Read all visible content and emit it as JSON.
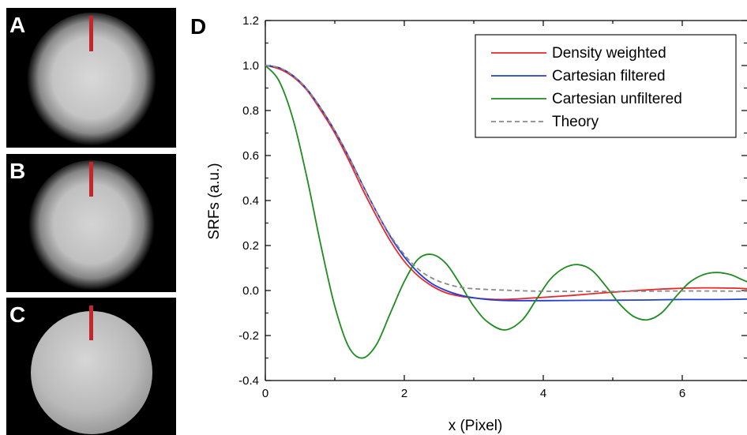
{
  "panels": [
    {
      "letter": "A",
      "style": "smooth"
    },
    {
      "letter": "B",
      "style": "smooth"
    },
    {
      "letter": "C",
      "style": "pixelated"
    }
  ],
  "chart_letter": "D",
  "chart_data": {
    "type": "line",
    "title": "",
    "xlabel": "x (Pixel)",
    "ylabel": "SRFs (a.u.)",
    "xlim": [
      0,
      7
    ],
    "ylim": [
      -0.4,
      1.2
    ],
    "xticks": [
      0,
      2,
      4,
      6
    ],
    "yticks": [
      -0.4,
      -0.2,
      0.0,
      0.2,
      0.4,
      0.6,
      0.8,
      1.0,
      1.2
    ],
    "ytick_labels": [
      "-0.4",
      "-0.2",
      "0.0",
      "0.2",
      "0.4",
      "0.6",
      "0.8",
      "1.0",
      "1.2"
    ],
    "grid": false,
    "legend_position": "top-right",
    "series": [
      {
        "name": "Density weighted",
        "color": "#e8262b",
        "dash": "none",
        "points": [
          [
            0,
            1.0
          ],
          [
            0.2,
            0.985
          ],
          [
            0.4,
            0.95
          ],
          [
            0.6,
            0.89
          ],
          [
            0.8,
            0.8
          ],
          [
            1.0,
            0.7
          ],
          [
            1.2,
            0.58
          ],
          [
            1.4,
            0.45
          ],
          [
            1.6,
            0.33
          ],
          [
            1.8,
            0.22
          ],
          [
            2.0,
            0.13
          ],
          [
            2.2,
            0.065
          ],
          [
            2.4,
            0.02
          ],
          [
            2.6,
            -0.01
          ],
          [
            2.8,
            -0.025
          ],
          [
            3.0,
            -0.033
          ],
          [
            3.2,
            -0.038
          ],
          [
            3.4,
            -0.04
          ],
          [
            3.6,
            -0.038
          ],
          [
            3.8,
            -0.034
          ],
          [
            4.0,
            -0.03
          ],
          [
            4.4,
            -0.022
          ],
          [
            4.8,
            -0.012
          ],
          [
            5.2,
            -0.003
          ],
          [
            5.6,
            0.005
          ],
          [
            6.0,
            0.01
          ],
          [
            6.4,
            0.012
          ],
          [
            6.8,
            0.01
          ],
          [
            7.0,
            0.006
          ]
        ]
      },
      {
        "name": "Cartesian filtered",
        "color": "#1f3fd6",
        "dash": "none",
        "points": [
          [
            0,
            1.0
          ],
          [
            0.2,
            0.99
          ],
          [
            0.4,
            0.955
          ],
          [
            0.6,
            0.895
          ],
          [
            0.8,
            0.81
          ],
          [
            1.0,
            0.71
          ],
          [
            1.2,
            0.595
          ],
          [
            1.4,
            0.47
          ],
          [
            1.6,
            0.35
          ],
          [
            1.8,
            0.24
          ],
          [
            2.0,
            0.15
          ],
          [
            2.2,
            0.08
          ],
          [
            2.4,
            0.03
          ],
          [
            2.6,
            0.0
          ],
          [
            2.8,
            -0.02
          ],
          [
            3.0,
            -0.032
          ],
          [
            3.2,
            -0.04
          ],
          [
            3.4,
            -0.044
          ],
          [
            3.6,
            -0.045
          ],
          [
            4.0,
            -0.045
          ],
          [
            4.5,
            -0.044
          ],
          [
            5.0,
            -0.043
          ],
          [
            5.5,
            -0.042
          ],
          [
            6.0,
            -0.04
          ],
          [
            6.5,
            -0.04
          ],
          [
            7.0,
            -0.038
          ]
        ]
      },
      {
        "name": "Cartesian unfiltered",
        "color": "#1e8c1e",
        "dash": "none",
        "points": [
          [
            0,
            1.0
          ],
          [
            0.2,
            0.93
          ],
          [
            0.4,
            0.76
          ],
          [
            0.6,
            0.5
          ],
          [
            0.8,
            0.2
          ],
          [
            1.0,
            -0.07
          ],
          [
            1.2,
            -0.25
          ],
          [
            1.4,
            -0.3
          ],
          [
            1.6,
            -0.24
          ],
          [
            1.8,
            -0.1
          ],
          [
            2.0,
            0.04
          ],
          [
            2.2,
            0.14
          ],
          [
            2.4,
            0.16
          ],
          [
            2.6,
            0.12
          ],
          [
            2.8,
            0.03
          ],
          [
            3.0,
            -0.07
          ],
          [
            3.2,
            -0.14
          ],
          [
            3.45,
            -0.175
          ],
          [
            3.7,
            -0.13
          ],
          [
            3.9,
            -0.04
          ],
          [
            4.1,
            0.05
          ],
          [
            4.3,
            0.1
          ],
          [
            4.5,
            0.115
          ],
          [
            4.7,
            0.09
          ],
          [
            4.9,
            0.02
          ],
          [
            5.1,
            -0.06
          ],
          [
            5.3,
            -0.115
          ],
          [
            5.5,
            -0.13
          ],
          [
            5.7,
            -0.1
          ],
          [
            5.9,
            -0.03
          ],
          [
            6.1,
            0.035
          ],
          [
            6.3,
            0.07
          ],
          [
            6.5,
            0.08
          ],
          [
            6.7,
            0.07
          ],
          [
            6.85,
            0.05
          ],
          [
            7.0,
            0.03
          ]
        ]
      },
      {
        "name": "Theory",
        "color": "#8a8a8a",
        "dash": "6,4",
        "points": [
          [
            0,
            1.0
          ],
          [
            0.2,
            0.99
          ],
          [
            0.4,
            0.955
          ],
          [
            0.6,
            0.895
          ],
          [
            0.8,
            0.81
          ],
          [
            1.0,
            0.71
          ],
          [
            1.2,
            0.595
          ],
          [
            1.4,
            0.47
          ],
          [
            1.6,
            0.35
          ],
          [
            1.8,
            0.245
          ],
          [
            2.0,
            0.16
          ],
          [
            2.2,
            0.095
          ],
          [
            2.4,
            0.055
          ],
          [
            2.6,
            0.03
          ],
          [
            2.8,
            0.015
          ],
          [
            3.0,
            0.008
          ],
          [
            3.4,
            0.002
          ],
          [
            4.0,
            -0.003
          ],
          [
            5.0,
            -0.004
          ],
          [
            6.0,
            -0.002
          ],
          [
            7.0,
            -0.003
          ]
        ]
      }
    ]
  }
}
